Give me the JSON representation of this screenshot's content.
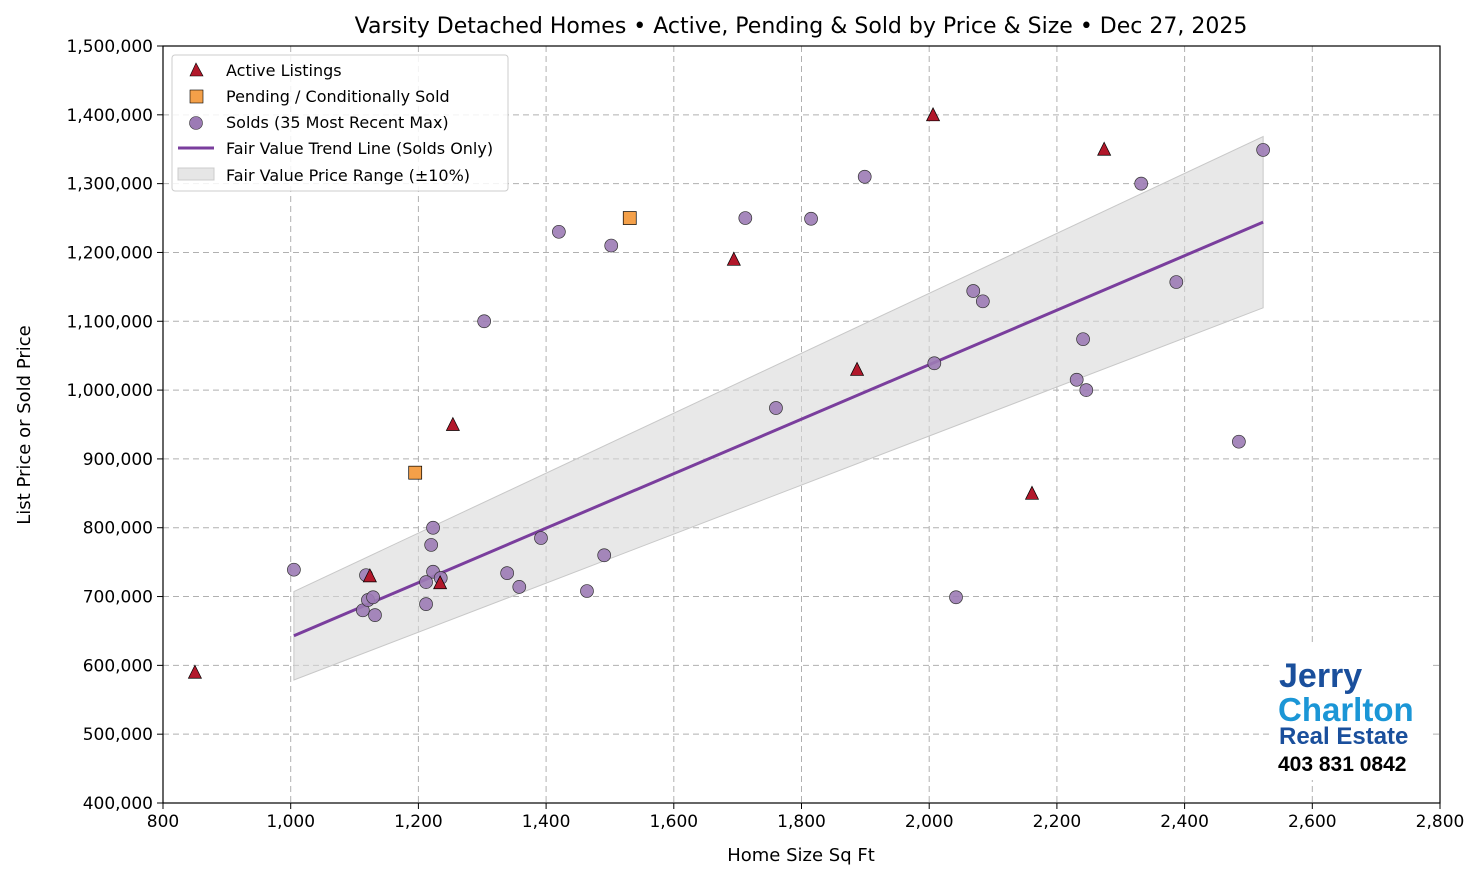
{
  "chart_data": {
    "type": "scatter",
    "title": "Varsity Detached Homes • Active, Pending & Sold by Price & Size • Dec 27, 2025",
    "xlabel": "Home Size Sq Ft",
    "ylabel": "List Price or Sold Price",
    "xlim": [
      800,
      2800
    ],
    "ylim": [
      400000,
      1500000
    ],
    "xticks": [
      800,
      1000,
      1200,
      1400,
      1600,
      1800,
      2000,
      2200,
      2400,
      2600,
      2800
    ],
    "yticks": [
      400000,
      500000,
      600000,
      700000,
      800000,
      900000,
      1000000,
      1100000,
      1200000,
      1300000,
      1400000,
      1500000
    ],
    "xtick_labels": [
      "800",
      "1,000",
      "1,200",
      "1,400",
      "1,600",
      "1,800",
      "2,000",
      "2,200",
      "2,400",
      "2,600",
      "2,800"
    ],
    "ytick_labels": [
      "400,000",
      "500,000",
      "600,000",
      "700,000",
      "800,000",
      "900,000",
      "1,000,000",
      "1,100,000",
      "1,200,000",
      "1,300,000",
      "1,400,000",
      "1,500,000"
    ],
    "grid": true,
    "legend_position": "top-left",
    "series": [
      {
        "name": "Active Listings",
        "marker": "triangle",
        "color": "#b2182b",
        "points": [
          [
            850,
            590000
          ],
          [
            1124,
            730000
          ],
          [
            1234,
            720000
          ],
          [
            1254,
            950000
          ],
          [
            1694,
            1190000
          ],
          [
            1887,
            1030000
          ],
          [
            2006,
            1400000
          ],
          [
            2161,
            850000
          ],
          [
            2274,
            1350000
          ]
        ]
      },
      {
        "name": "Pending / Conditionally Sold",
        "marker": "square",
        "color": "#f4a049",
        "points": [
          [
            1195,
            880000
          ],
          [
            1531,
            1250000
          ]
        ]
      },
      {
        "name": "Solds (35 Most Recent Max)",
        "marker": "circle",
        "color": "#9c7bb5",
        "points": [
          [
            1005,
            739000
          ],
          [
            1118,
            731000
          ],
          [
            1113,
            680000
          ],
          [
            1121,
            695000
          ],
          [
            1129,
            699000
          ],
          [
            1132,
            673000
          ],
          [
            1220,
            775000
          ],
          [
            1223,
            800000
          ],
          [
            1223,
            736000
          ],
          [
            1212,
            721000
          ],
          [
            1235,
            727000
          ],
          [
            1212,
            689000
          ],
          [
            1303,
            1100000
          ],
          [
            1339,
            734000
          ],
          [
            1358,
            714000
          ],
          [
            1392,
            785000
          ],
          [
            1420,
            1230000
          ],
          [
            1464,
            708000
          ],
          [
            1491,
            760000
          ],
          [
            1502,
            1210000
          ],
          [
            1712,
            1250000
          ],
          [
            1760,
            974000
          ],
          [
            1815,
            1249000
          ],
          [
            1899,
            1310000
          ],
          [
            2008,
            1039000
          ],
          [
            2042,
            699000
          ],
          [
            2069,
            1144000
          ],
          [
            2084,
            1129000
          ],
          [
            2231,
            1015000
          ],
          [
            2241,
            1074000
          ],
          [
            2246,
            1000000
          ],
          [
            2332,
            1300000
          ],
          [
            2387,
            1157000
          ],
          [
            2485,
            925000
          ],
          [
            2523,
            1349000
          ]
        ]
      }
    ],
    "trend_line": {
      "name": "Fair Value Trend Line (Solds Only)",
      "color": "#7a3e9d",
      "points": [
        [
          1005,
          643000
        ],
        [
          2523,
          1244000
        ]
      ]
    },
    "band": {
      "name": "Fair Value Price Range (±10%)",
      "color": "#d9d9d9",
      "pct": 0.1
    }
  },
  "logo": {
    "line1": "Jerry",
    "line2": "Charlton",
    "line3": "Real Estate",
    "phone": "403 831 0842"
  }
}
